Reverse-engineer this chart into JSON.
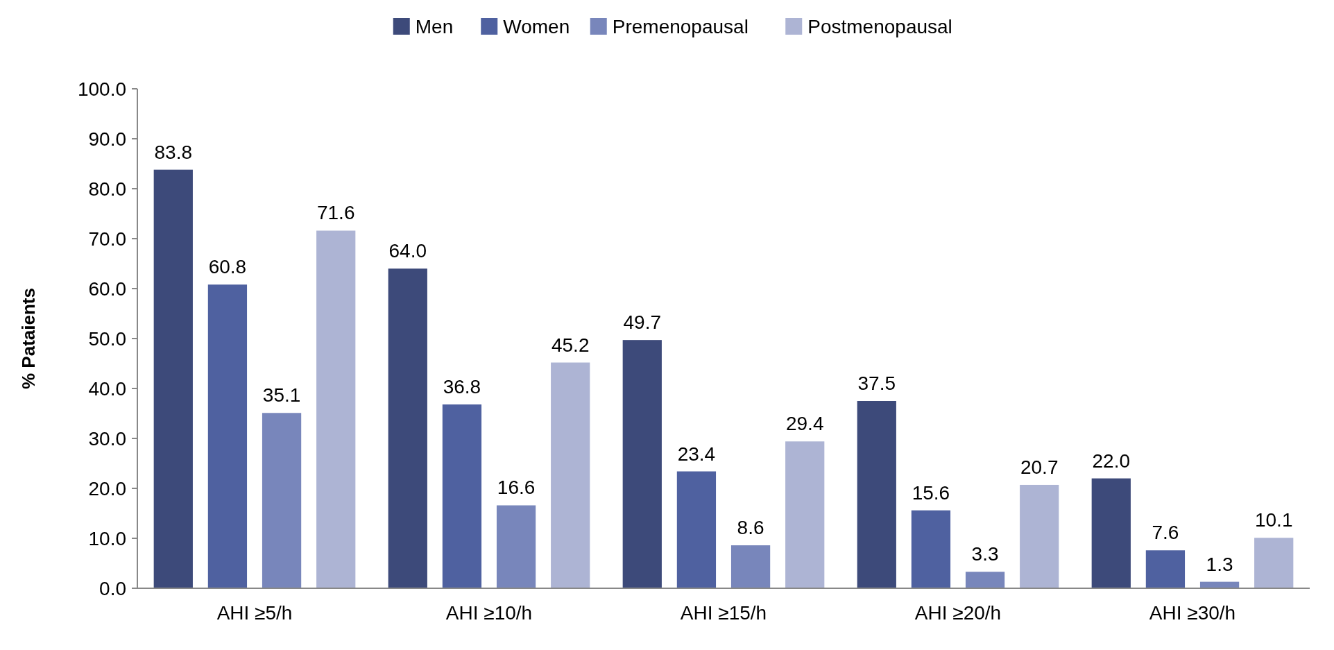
{
  "chart_data": {
    "type": "bar",
    "categories": [
      "AHI ≥5/h",
      "AHI ≥10/h",
      "AHI ≥15/h",
      "AHI ≥20/h",
      "AHI ≥30/h"
    ],
    "series": [
      {
        "name": "Men",
        "color": "#3d4a7a",
        "values": [
          83.8,
          64.0,
          49.7,
          37.5,
          22.0
        ],
        "value_labels": [
          "83.8",
          "64.0",
          "49.7",
          "37.5",
          "22.0"
        ]
      },
      {
        "name": "Women",
        "color": "#4f61a0",
        "values": [
          60.8,
          36.8,
          23.4,
          15.6,
          7.6
        ],
        "value_labels": [
          "60.8",
          "36.8",
          "23.4",
          "15.6",
          "7.6"
        ]
      },
      {
        "name": "Premenopausal",
        "color": "#7886bb",
        "values": [
          35.1,
          16.6,
          8.6,
          3.3,
          1.3
        ],
        "value_labels": [
          "35.1",
          "16.6",
          "8.6",
          "3.3",
          "1.3"
        ]
      },
      {
        "name": "Postmenopausal",
        "color": "#adb4d4",
        "values": [
          71.6,
          45.2,
          29.4,
          20.7,
          10.1
        ],
        "value_labels": [
          "71.6",
          "45.2",
          "29.4",
          "20.7",
          "10.1"
        ]
      }
    ],
    "ylabel": "% Pataients",
    "ylim": [
      0,
      100
    ],
    "yticks": [
      {
        "value": 0,
        "label": "0.0"
      },
      {
        "value": 10,
        "label": "10.0"
      },
      {
        "value": 20,
        "label": "20.0"
      },
      {
        "value": 30,
        "label": "30.0"
      },
      {
        "value": 40,
        "label": "40.0"
      },
      {
        "value": 50,
        "label": "50.0"
      },
      {
        "value": 60,
        "label": "60.0"
      },
      {
        "value": 70,
        "label": "70.0"
      },
      {
        "value": 80,
        "label": "80.0"
      },
      {
        "value": 90,
        "label": "90.0"
      },
      {
        "value": 100,
        "label": "100.0"
      }
    ],
    "legend": "top",
    "grid": false
  }
}
